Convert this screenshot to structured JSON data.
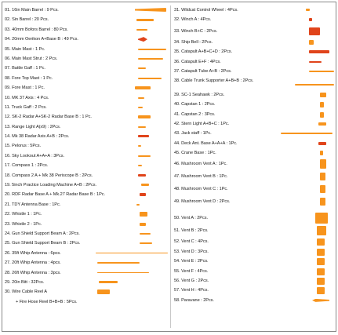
{
  "colors": {
    "part": "#f7941d",
    "part_dark": "#e9820f",
    "part_red": "#e0441b",
    "border": "#8a8a8a"
  },
  "left_column": [
    "01. 16in Main Barrel : 9 Pcs.",
    "02. Sin Barrel : 20 Pcs.",
    "03. 40mm Bofors Barrel : 80 Pcs.",
    "04. 20mm Oerikon A+Base B : 49 Pcs.",
    "05. Main Mast : 1 Pc.",
    "06. Main Mast Strut : 2 Pcs.",
    "07. Battle Gaff : 1 Pc.",
    "08. Fore Top Mast : 1 Pc.",
    "09. Fore  Mast : 1 Pc.",
    "10. MK 37 Axis : 4 Pcs.",
    "11. Truck Gaff : 2 Pcs.",
    "12. SK-2 Radar A+SK-2 Radar Base B : 1 Pc.",
    "13. Range Light A(x9) : 2Pcs.",
    "14. Mk 38 Radar Axis A+B : 2Pcs.",
    "15. Pelorus : 5Pcs.",
    "16. Sky Lookout A+A+A : 3Pcs.",
    "17. Compass 1 : 2Pcs.",
    "18. Compass 2 A + Mk 38 Periscope B : 2Pcs.",
    "19. 5inch Practice Loading Machine A+B : 2Pcs.",
    "20. RDF Radar Base A + Mk.27 Radar Base B : 1Pc.",
    "21. TDY Antenna Base : 1Pc.",
    "22. Whistle 1 : 1Pc.",
    "23. Whistle 2 : 1Pc.",
    "24. Gun Shield Support Beam A : 2Pcs.",
    "25. Gun Shield Support Beam B : 2Pcs.",
    "26. 35ft Whip Antenna  : 6pcs.",
    "27. 20ft Whip Antenna  : 4pcs.",
    "28. 26ft Whip Antenna  : 3pcs.",
    "29. 20in Bitt : 32Pcs.",
    "30. Wire Cable Reel A",
    "+ Fire Hose Reel B+B+B : 5Pcs."
  ],
  "right_column": [
    "31. Wildcat Control Wheel : 4Pcs.",
    "32. Winch A : 4Pcs.",
    "33. Winch B+C : 2Pcs.",
    "34. Ship Bell : 2Pcs.",
    "35. Catapult A+B+C+D : 2Pcs.",
    "36. Catapult E+F : 4Pcs.",
    "37. Catapult Tube A+B : 2Pcs.",
    "38. Cable Trunk Supporter A+B+B : 2Pcs.",
    "39. SC-1 Seahawk : 2Pcs.",
    "40. Capstan 1 : 2Pcs.",
    "41. Capstan 2 : 3Pcs.",
    "42. Stern Light A+B+C : 1Pc.",
    "43. Jack staff : 1Pc.",
    "44. Deck Ant. Base A+A+A : 1Pc.",
    "45. Crane Base : 1Pc.",
    "46. Mushroom Vent A : 1Pc.",
    "47. Mushroom Vent B : 1Pc.",
    "48. Mushroom Vent C : 1Pc.",
    "49. Mushroom Vent D : 2Pcs.",
    "50. Vent A : 2Pcs.",
    "51. Vent B : 2Pcs.",
    "52. Vent C : 4Pcs.",
    "53. Vent D : 3Pcs.",
    "54. Vent E : 2Pcs.",
    "55. Vent F : 4Pcs.",
    "56. Vent G : 2Pcs.",
    "57. Vent H : 4Pcs.",
    "58. Paravane : 2Pcs."
  ]
}
